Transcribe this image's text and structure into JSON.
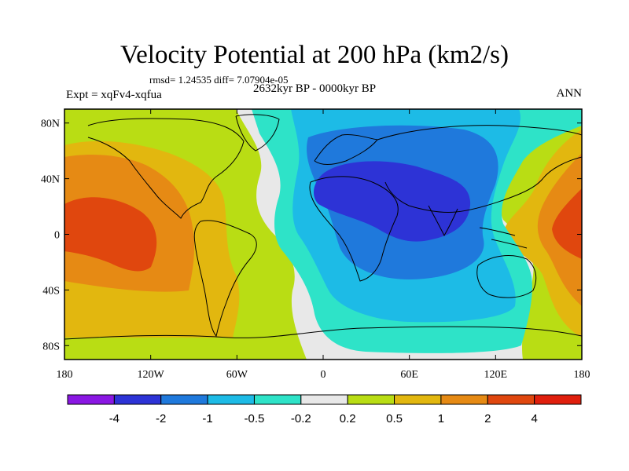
{
  "title": "Velocity Potential at 200 hPa (km2/s)",
  "stats": "rmsd= 1.24535 diff= 7.07904e-05",
  "period": "2632kyr BP - 0000kyr BP",
  "experiment": "Expt = xqFv4-xqfua",
  "season": "ANN",
  "map": {
    "lon_range": [
      -180,
      180
    ],
    "lat_range": [
      -90,
      90
    ],
    "lon_ticks": [
      {
        "value": -180,
        "label": "180"
      },
      {
        "value": -120,
        "label": "120W"
      },
      {
        "value": -60,
        "label": "60W"
      },
      {
        "value": 0,
        "label": "0"
      },
      {
        "value": 60,
        "label": "60E"
      },
      {
        "value": 120,
        "label": "120E"
      },
      {
        "value": 180,
        "label": "180"
      }
    ],
    "lat_ticks": [
      {
        "value": 80,
        "label": "80N"
      },
      {
        "value": 40,
        "label": "40N"
      },
      {
        "value": 0,
        "label": "0"
      },
      {
        "value": -40,
        "label": "40S"
      },
      {
        "value": -80,
        "label": "80S"
      }
    ]
  },
  "colorbar": {
    "colors": [
      "#8a17e3",
      "#2d33d6",
      "#1f79dc",
      "#1dbbe6",
      "#2ee3c8",
      "#e8e8e8",
      "#b9dd14",
      "#e2b70f",
      "#e68a14",
      "#e0470e",
      "#e01f0d"
    ],
    "labels": [
      "-4",
      "-2",
      "-1",
      "-0.5",
      "-0.2",
      "0.2",
      "0.5",
      "1",
      "2",
      "4"
    ]
  }
}
